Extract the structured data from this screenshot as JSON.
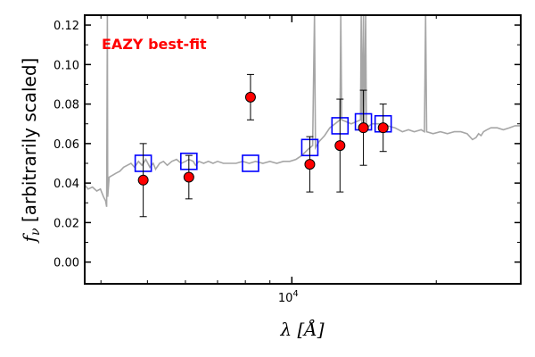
{
  "chart_data": {
    "type": "scatter",
    "title": "",
    "xlabel_main": "λ [",
    "xlabel_unit": "Å",
    "xlabel_close": "]",
    "ylabel_main": "f",
    "ylabel_sub": "ν",
    "ylabel_rest": " [arbitrarily scaled]",
    "annotation": "EAZY best-fit",
    "annotation_color": "#ff0000",
    "x_scale": "log",
    "xlim": [
      3700,
      30000
    ],
    "ylim": [
      -0.011,
      0.125
    ],
    "x_ticks": [
      {
        "value": 10000,
        "base": "10",
        "exp": "4"
      }
    ],
    "y_ticks": [
      {
        "value": 0.0,
        "label": "0.00"
      },
      {
        "value": 0.02,
        "label": "0.02"
      },
      {
        "value": 0.04,
        "label": "0.04"
      },
      {
        "value": 0.06,
        "label": "0.06"
      },
      {
        "value": 0.08,
        "label": "0.08"
      },
      {
        "value": 0.1,
        "label": "0.10"
      },
      {
        "value": 0.12,
        "label": "0.12"
      }
    ],
    "grid": false,
    "series": [
      {
        "kind": "model-spectrum",
        "color": "#a6a6a6",
        "points": [
          [
            3700,
            0.039
          ],
          [
            3760,
            0.037
          ],
          [
            3840,
            0.038
          ],
          [
            3920,
            0.036
          ],
          [
            3990,
            0.037
          ],
          [
            4050,
            0.033
          ],
          [
            4090,
            0.031
          ],
          [
            4110,
            0.028
          ],
          [
            4125,
            0.125
          ],
          [
            4132,
            0.033
          ],
          [
            4160,
            0.043
          ],
          [
            4230,
            0.044
          ],
          [
            4300,
            0.045
          ],
          [
            4380,
            0.046
          ],
          [
            4460,
            0.048
          ],
          [
            4540,
            0.049
          ],
          [
            4620,
            0.05
          ],
          [
            4700,
            0.048
          ],
          [
            4790,
            0.051
          ],
          [
            4870,
            0.049
          ],
          [
            4960,
            0.052
          ],
          [
            5060,
            0.048
          ],
          [
            5140,
            0.05
          ],
          [
            5200,
            0.047
          ],
          [
            5300,
            0.05
          ],
          [
            5400,
            0.051
          ],
          [
            5500,
            0.049
          ],
          [
            5620,
            0.051
          ],
          [
            5750,
            0.052
          ],
          [
            5880,
            0.05
          ],
          [
            6000,
            0.051
          ],
          [
            6100,
            0.052
          ],
          [
            6230,
            0.051
          ],
          [
            6300,
            0.049
          ],
          [
            6400,
            0.051
          ],
          [
            6550,
            0.05
          ],
          [
            6700,
            0.051
          ],
          [
            6850,
            0.05
          ],
          [
            7000,
            0.051
          ],
          [
            7200,
            0.05
          ],
          [
            7400,
            0.05
          ],
          [
            7650,
            0.05
          ],
          [
            7900,
            0.051
          ],
          [
            8150,
            0.05
          ],
          [
            8400,
            0.051
          ],
          [
            8700,
            0.05
          ],
          [
            9000,
            0.051
          ],
          [
            9300,
            0.05
          ],
          [
            9600,
            0.051
          ],
          [
            9900,
            0.051
          ],
          [
            10200,
            0.052
          ],
          [
            10500,
            0.054
          ],
          [
            10800,
            0.057
          ],
          [
            11050,
            0.059
          ],
          [
            11150,
            0.125
          ],
          [
            11200,
            0.058
          ],
          [
            11400,
            0.061
          ],
          [
            11700,
            0.064
          ],
          [
            12000,
            0.068
          ],
          [
            12300,
            0.07
          ],
          [
            12600,
            0.072
          ],
          [
            12650,
            0.125
          ],
          [
            12700,
            0.072
          ],
          [
            13000,
            0.071
          ],
          [
            13300,
            0.07
          ],
          [
            13600,
            0.071
          ],
          [
            13900,
            0.072
          ],
          [
            13950,
            0.125
          ],
          [
            14000,
            0.07
          ],
          [
            14100,
            0.125
          ],
          [
            14150,
            0.067
          ],
          [
            14250,
            0.125
          ],
          [
            14300,
            0.068
          ],
          [
            14700,
            0.07
          ],
          [
            15200,
            0.07
          ],
          [
            15800,
            0.069
          ],
          [
            16400,
            0.068
          ],
          [
            17000,
            0.066
          ],
          [
            17500,
            0.067
          ],
          [
            18000,
            0.066
          ],
          [
            18600,
            0.067
          ],
          [
            18900,
            0.066
          ],
          [
            19000,
            0.125
          ],
          [
            19100,
            0.066
          ],
          [
            19700,
            0.065
          ],
          [
            20400,
            0.066
          ],
          [
            21100,
            0.065
          ],
          [
            21800,
            0.066
          ],
          [
            22500,
            0.066
          ],
          [
            23200,
            0.065
          ],
          [
            23800,
            0.062
          ],
          [
            24200,
            0.063
          ],
          [
            24500,
            0.065
          ],
          [
            24800,
            0.064
          ],
          [
            25100,
            0.066
          ],
          [
            25500,
            0.067
          ],
          [
            26000,
            0.068
          ],
          [
            26800,
            0.068
          ],
          [
            27600,
            0.067
          ],
          [
            28400,
            0.068
          ],
          [
            29200,
            0.069
          ],
          [
            30000,
            0.069
          ]
        ]
      },
      {
        "kind": "model-photometry",
        "marker": "square",
        "color": "#0000ff",
        "points": [
          [
            4900,
            0.05
          ],
          [
            6100,
            0.051
          ],
          [
            8200,
            0.05
          ],
          [
            10900,
            0.058
          ],
          [
            12600,
            0.069
          ],
          [
            14100,
            0.071
          ],
          [
            15500,
            0.07
          ]
        ]
      },
      {
        "kind": "observed-photometry",
        "marker": "circle",
        "color": "#ff0000",
        "points": [
          {
            "x": 4900,
            "y": 0.0415,
            "err": 0.0185
          },
          {
            "x": 6100,
            "y": 0.043,
            "err": 0.011
          },
          {
            "x": 8200,
            "y": 0.0835,
            "err": 0.0115
          },
          {
            "x": 10900,
            "y": 0.0495,
            "err": 0.014
          },
          {
            "x": 12600,
            "y": 0.059,
            "err": 0.0235
          },
          {
            "x": 14100,
            "y": 0.068,
            "err": 0.019
          },
          {
            "x": 15500,
            "y": 0.068,
            "err": 0.012
          }
        ]
      }
    ]
  }
}
